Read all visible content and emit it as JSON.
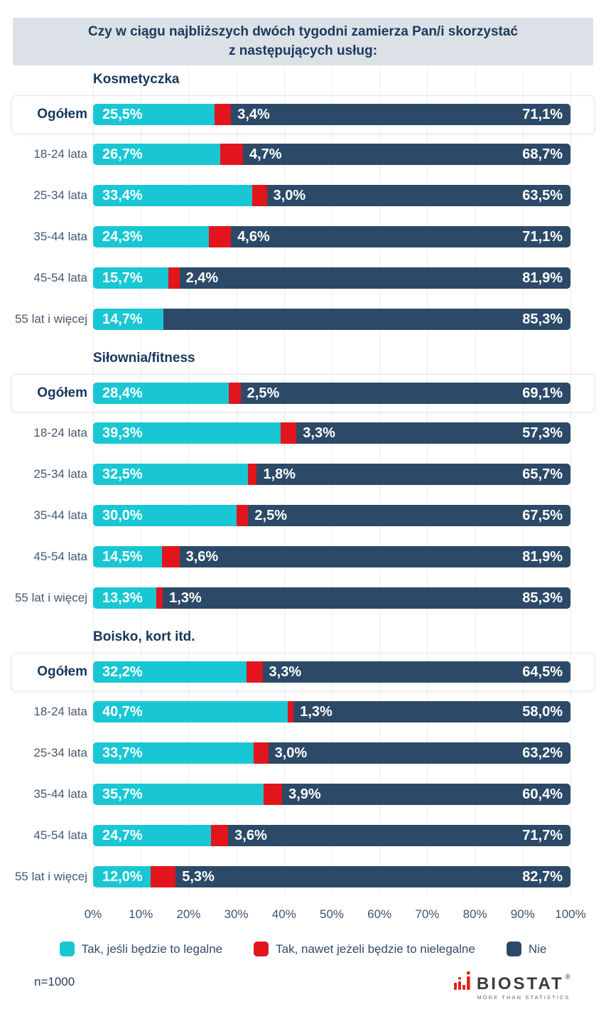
{
  "title": {
    "line1": "Czy w ciągu najbliższych dwóch tygodni zamierza Pan/i skorzystać",
    "line2": "z następujących usług:"
  },
  "colors": {
    "yes_legal": "#19c7d4",
    "yes_illegal": "#e3151c",
    "no": "#2c4a68",
    "header_bg": "#dce1e7",
    "title_text": "#1b3a5e",
    "row_label_text": "#47596e",
    "axis_text": "#3e5472",
    "gridline": "#e9edf1"
  },
  "sample_note": "n=1000",
  "logo": {
    "icon": "red-bar-chart-icon",
    "brand": "BIOSTAT",
    "registered": "®",
    "tagline": "MORE THAN STATISTICS"
  },
  "chart_data": {
    "type": "bar",
    "orientation": "horizontal-stacked",
    "title": "Czy w ciągu najbliższych dwóch tygodni zamierza Pan/i skorzystać z następujących usług:",
    "x_axis": {
      "min": 0,
      "max": 100,
      "ticks": [
        "0%",
        "10%",
        "20%",
        "30%",
        "40%",
        "50%",
        "60%",
        "70%",
        "80%",
        "90%",
        "100%"
      ],
      "grid": true
    },
    "series_names": [
      "Tak, jeśli będzie to legalne",
      "Tak, nawet jeżeli będzie to nielegalne",
      "Nie"
    ],
    "legend": [
      {
        "label": "Tak, jeśli będzie to legalne",
        "color_key": "yes_legal"
      },
      {
        "label": "Tak, nawet jeżeli będzie to nielegalne",
        "color_key": "yes_illegal"
      },
      {
        "label": "Nie",
        "color_key": "no"
      }
    ],
    "legend_position": "bottom",
    "sections": [
      {
        "title": "Kosmetyczka",
        "rows": [
          {
            "label": "Ogółem",
            "highlight": true,
            "values": [
              25.5,
              3.4,
              71.1
            ],
            "display": [
              "25,5%",
              "3,4%",
              "71,1%"
            ]
          },
          {
            "label": "18-24 lata",
            "highlight": false,
            "values": [
              26.7,
              4.7,
              68.7
            ],
            "display": [
              "26,7%",
              "4,7%",
              "68,7%"
            ]
          },
          {
            "label": "25-34 lata",
            "highlight": false,
            "values": [
              33.4,
              3.0,
              63.5
            ],
            "display": [
              "33,4%",
              "3,0%",
              "63,5%"
            ]
          },
          {
            "label": "35-44 lata",
            "highlight": false,
            "values": [
              24.3,
              4.6,
              71.1
            ],
            "display": [
              "24,3%",
              "4,6%",
              "71,1%"
            ]
          },
          {
            "label": "45-54 lata",
            "highlight": false,
            "values": [
              15.7,
              2.4,
              81.9
            ],
            "display": [
              "15,7%",
              "2,4%",
              "81,9%"
            ]
          },
          {
            "label": "55 lat i więcej",
            "highlight": false,
            "values": [
              14.7,
              0,
              85.3
            ],
            "display": [
              "14,7%",
              null,
              "85,3%"
            ]
          }
        ]
      },
      {
        "title": "Siłownia/fitness",
        "rows": [
          {
            "label": "Ogółem",
            "highlight": true,
            "values": [
              28.4,
              2.5,
              69.1
            ],
            "display": [
              "28,4%",
              "2,5%",
              "69,1%"
            ]
          },
          {
            "label": "18-24 lata",
            "highlight": false,
            "values": [
              39.3,
              3.3,
              57.3
            ],
            "display": [
              "39,3%",
              "3,3%",
              "57,3%"
            ]
          },
          {
            "label": "25-34 lata",
            "highlight": false,
            "values": [
              32.5,
              1.8,
              65.7
            ],
            "display": [
              "32,5%",
              "1,8%",
              "65,7%"
            ]
          },
          {
            "label": "35-44 lata",
            "highlight": false,
            "values": [
              30.0,
              2.5,
              67.5
            ],
            "display": [
              "30,0%",
              "2,5%",
              "67,5%"
            ]
          },
          {
            "label": "45-54 lata",
            "highlight": false,
            "values": [
              14.5,
              3.6,
              81.9
            ],
            "display": [
              "14,5%",
              "3,6%",
              "81,9%"
            ]
          },
          {
            "label": "55 lat i więcej",
            "highlight": false,
            "values": [
              13.3,
              1.3,
              85.3
            ],
            "display": [
              "13,3%",
              "1,3%",
              "85,3%"
            ]
          }
        ]
      },
      {
        "title": "Boisko, kort itd.",
        "rows": [
          {
            "label": "Ogółem",
            "highlight": true,
            "values": [
              32.2,
              3.3,
              64.5
            ],
            "display": [
              "32,2%",
              "3,3%",
              "64,5%"
            ]
          },
          {
            "label": "18-24 lata",
            "highlight": false,
            "values": [
              40.7,
              1.3,
              58.0
            ],
            "display": [
              "40,7%",
              "1,3%",
              "58,0%"
            ]
          },
          {
            "label": "25-34 lata",
            "highlight": false,
            "values": [
              33.7,
              3.0,
              63.2
            ],
            "display": [
              "33,7%",
              "3,0%",
              "63,2%"
            ]
          },
          {
            "label": "35-44 lata",
            "highlight": false,
            "values": [
              35.7,
              3.9,
              60.4
            ],
            "display": [
              "35,7%",
              "3,9%",
              "60,4%"
            ]
          },
          {
            "label": "45-54 lata",
            "highlight": false,
            "values": [
              24.7,
              3.6,
              71.7
            ],
            "display": [
              "24,7%",
              "3,6%",
              "71,7%"
            ]
          },
          {
            "label": "55 lat i więcej",
            "highlight": false,
            "values": [
              12.0,
              5.3,
              82.7
            ],
            "display": [
              "12,0%",
              "5,3%",
              "82,7%"
            ]
          }
        ]
      }
    ]
  }
}
